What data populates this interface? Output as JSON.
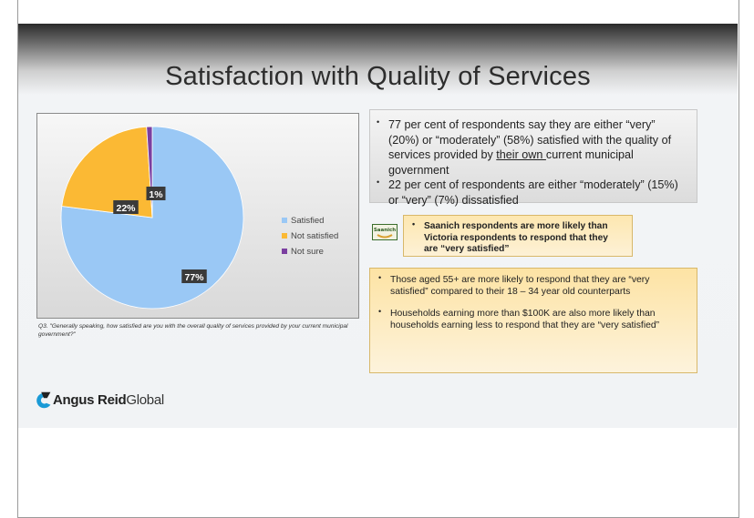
{
  "slide": {
    "title": "Satisfaction with Quality of Services",
    "caption": "Q3. \"Generally speaking, how satisfied are you with the overall quality of services provided by your current municipal government?\""
  },
  "chart_data": {
    "type": "pie",
    "categories": [
      "Satisfied",
      "Not satisfied",
      "Not sure"
    ],
    "values": [
      77,
      22,
      1
    ],
    "data_labels": [
      "77%",
      "22%",
      "1%"
    ],
    "colors": [
      "#9ac8f5",
      "#fbb934",
      "#7b3fa0"
    ],
    "legend_placement": "right"
  },
  "findings": {
    "bullet1": {
      "pre": "77 per cent of respondents say they are either “very” (20%) or “moderately” (58%) satisfied with the quality of services provided by ",
      "underlined": "their own ",
      "post": "current municipal government"
    },
    "bullet2": "22 per cent of respondents are either “moderately” (15%) or “very” (7%) dissatisfied"
  },
  "saanich": {
    "logo": "Saanich",
    "text": "Saanich respondents are more likely than Victoria respondents to respond that they are “very satisfied”"
  },
  "demographics": {
    "bullet1": "Those aged 55+ are more likely to respond that they are “very satisfied” compared to their 18 – 34 year old counterparts",
    "bullet2": "Households earning more than $100K are also more likely than households earning less to respond that they are “very satisfied”"
  },
  "brand": {
    "name_bold": "Angus Reid",
    "name_light": "Global"
  }
}
